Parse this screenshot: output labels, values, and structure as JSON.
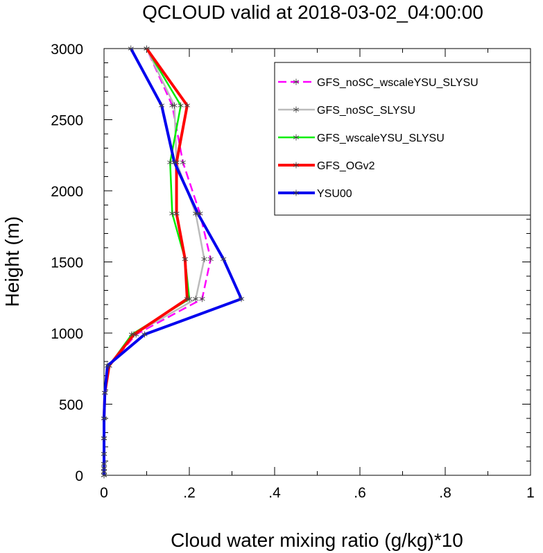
{
  "chart_data": {
    "type": "line",
    "title": "QCLOUD valid at 2018-03-02_04:00:00",
    "xlabel": "Cloud water mixing ratio (g/kg)*10",
    "ylabel": "Height (m)",
    "xlim": [
      0,
      1
    ],
    "ylim": [
      0,
      3000
    ],
    "xticks": [
      0,
      0.2,
      0.4,
      0.6,
      0.8,
      1
    ],
    "xtick_labels": [
      "0",
      ".2",
      ".4",
      ".6",
      ".8",
      "1"
    ],
    "yticks": [
      0,
      500,
      1000,
      1500,
      2000,
      2500,
      3000
    ],
    "ytick_labels": [
      "0",
      "500",
      "1000",
      "1500",
      "2000",
      "2500",
      "3000"
    ],
    "heights": [
      0,
      25,
      50,
      80,
      150,
      260,
      400,
      580,
      770,
      990,
      1240,
      1520,
      1840,
      2200,
      2600,
      3000
    ],
    "legend_position": "top-right",
    "grid": false,
    "series": [
      {
        "name": "GFS_noSC_wscaleYSU_SLYSU",
        "color": "#ff00ff",
        "dash": "12,6",
        "width": 2.5,
        "values": [
          0,
          0,
          0,
          0,
          0,
          0,
          0,
          0.002,
          0.012,
          0.075,
          0.23,
          0.25,
          0.225,
          0.185,
          0.16,
          0.1
        ]
      },
      {
        "name": "GFS_noSC_SLYSU",
        "color": "#bbbbbb",
        "dash": "",
        "width": 2.5,
        "values": [
          0,
          0,
          0,
          0,
          0,
          0,
          0,
          0.002,
          0.012,
          0.07,
          0.215,
          0.235,
          0.215,
          0.17,
          0.165,
          0.1
        ]
      },
      {
        "name": "GFS_wscaleYSU_SLYSU",
        "color": "#00ee00",
        "dash": "",
        "width": 2.5,
        "values": [
          0,
          0,
          0,
          0,
          0,
          0,
          0,
          0.002,
          0.012,
          0.065,
          0.2,
          0.19,
          0.16,
          0.155,
          0.18,
          0.1
        ]
      },
      {
        "name": "GFS_OGv2",
        "color": "#ff0000",
        "dash": "",
        "width": 4,
        "values": [
          0,
          0,
          0,
          0,
          0,
          0,
          0,
          0.002,
          0.012,
          0.07,
          0.195,
          0.19,
          0.17,
          0.17,
          0.195,
          0.1
        ]
      },
      {
        "name": "YSU00",
        "color": "#0000ee",
        "dash": "",
        "width": 4,
        "values": [
          0,
          0,
          0,
          0,
          0,
          0,
          0,
          0.002,
          0.008,
          0.095,
          0.322,
          0.28,
          0.22,
          0.165,
          0.135,
          0.063
        ]
      }
    ]
  }
}
